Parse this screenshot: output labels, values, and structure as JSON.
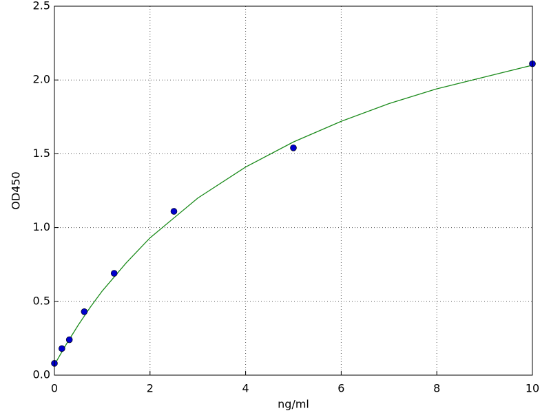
{
  "chart_data": {
    "type": "scatter",
    "x_label": "ng/ml",
    "y_label": "OD450",
    "xlim": [
      0,
      10
    ],
    "ylim": [
      0,
      2.5
    ],
    "xticks": [
      0,
      2,
      4,
      6,
      8,
      10
    ],
    "yticks": [
      {
        "value": 0,
        "label": "0.0"
      },
      0.5,
      {
        "value": 1,
        "label": "1.0"
      },
      1.5,
      {
        "value": 2,
        "label": "2.0"
      },
      2.5
    ],
    "grid": true,
    "series": [
      {
        "type": "scatter",
        "color": "#0000cc",
        "x": [
          0,
          0.156,
          0.3125,
          0.625,
          1.25,
          2.5,
          5,
          10
        ],
        "values": [
          0.08,
          0.18,
          0.24,
          0.43,
          0.69,
          1.11,
          1.54,
          2.11
        ]
      },
      {
        "type": "line",
        "color": "#1a8a1a",
        "x": [
          0,
          0.25,
          0.5,
          0.75,
          1,
          1.5,
          2,
          3,
          4,
          5,
          6,
          7,
          8,
          9,
          10
        ],
        "values": [
          0.07,
          0.21,
          0.34,
          0.46,
          0.57,
          0.76,
          0.93,
          1.2,
          1.41,
          1.58,
          1.72,
          1.84,
          1.94,
          2.02,
          2.1
        ]
      }
    ]
  }
}
